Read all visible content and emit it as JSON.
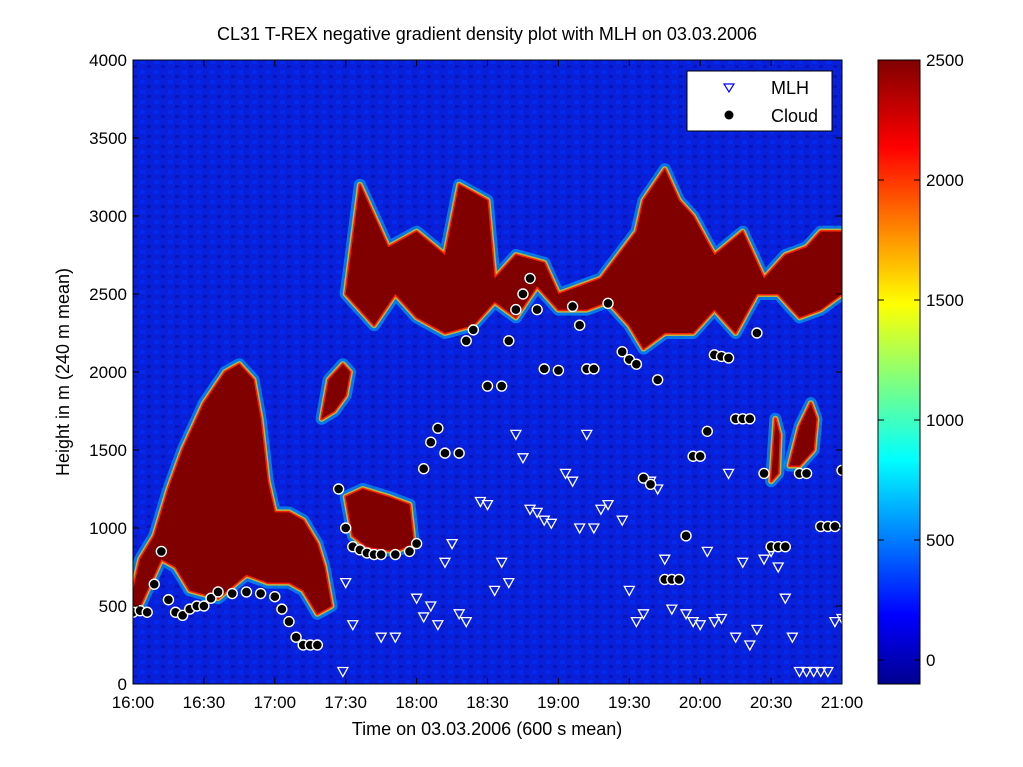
{
  "chart_data": {
    "type": "heatmap",
    "title": "CL31 T-REX negative gradient density plot with MLH on 03.03.2006",
    "xlabel": "Time on 03.03.2006 (600 s mean)",
    "ylabel": "Height in m (240 m mean)",
    "x_ticks": [
      "16:00",
      "16:30",
      "17:00",
      "17:30",
      "18:00",
      "18:30",
      "19:00",
      "19:30",
      "20:00",
      "20:30",
      "21:00"
    ],
    "x_tick_hours": [
      16.0,
      16.5,
      17.0,
      17.5,
      18.0,
      18.5,
      19.0,
      19.5,
      20.0,
      20.5,
      21.0
    ],
    "xlim_hours": [
      16.0,
      21.0
    ],
    "ylim": [
      0,
      4000
    ],
    "y_ticks": [
      0,
      500,
      1000,
      1500,
      2000,
      2500,
      3000,
      3500,
      4000
    ],
    "colorbar": {
      "clim": [
        -100,
        2500
      ],
      "ticks": [
        0,
        500,
        1000,
        1500,
        2000,
        2500
      ],
      "colormap": "jet"
    },
    "legend": {
      "placement": "top-right",
      "entries": [
        {
          "label": "MLH",
          "marker": "triangle-down",
          "color": "#0000ff"
        },
        {
          "label": "Cloud",
          "marker": "circle",
          "color": "#000000"
        }
      ]
    },
    "high_density_regions": [
      {
        "name": "left-plume",
        "points": [
          [
            16.0,
            600
          ],
          [
            16.05,
            800
          ],
          [
            16.15,
            950
          ],
          [
            16.25,
            1250
          ],
          [
            16.35,
            1500
          ],
          [
            16.5,
            1800
          ],
          [
            16.65,
            2000
          ],
          [
            16.75,
            2050
          ],
          [
            16.85,
            1950
          ],
          [
            16.9,
            1700
          ],
          [
            16.95,
            1300
          ],
          [
            17.0,
            1100
          ],
          [
            17.1,
            1100
          ],
          [
            17.2,
            1050
          ],
          [
            17.3,
            900
          ],
          [
            17.35,
            750
          ],
          [
            17.4,
            500
          ],
          [
            17.3,
            450
          ],
          [
            17.2,
            600
          ],
          [
            17.1,
            650
          ],
          [
            16.95,
            650
          ],
          [
            16.8,
            700
          ],
          [
            16.6,
            550
          ],
          [
            16.4,
            600
          ],
          [
            16.3,
            750
          ],
          [
            16.2,
            800
          ],
          [
            16.15,
            700
          ],
          [
            16.1,
            600
          ],
          [
            16.05,
            500
          ],
          [
            16.0,
            500
          ]
        ]
      },
      {
        "name": "block-1730",
        "points": [
          [
            17.5,
            1200
          ],
          [
            17.62,
            1250
          ],
          [
            17.8,
            1200
          ],
          [
            17.95,
            1150
          ],
          [
            17.98,
            900
          ],
          [
            17.85,
            850
          ],
          [
            17.65,
            880
          ],
          [
            17.55,
            950
          ]
        ]
      },
      {
        "name": "blob-1735",
        "points": [
          [
            17.33,
            1700
          ],
          [
            17.38,
            1950
          ],
          [
            17.48,
            2050
          ],
          [
            17.53,
            2000
          ],
          [
            17.5,
            1850
          ],
          [
            17.42,
            1750
          ]
        ]
      },
      {
        "name": "upper-band",
        "points": [
          [
            17.6,
            3200
          ],
          [
            17.8,
            2800
          ],
          [
            18.0,
            2900
          ],
          [
            18.2,
            2750
          ],
          [
            18.3,
            3200
          ],
          [
            18.5,
            3100
          ],
          [
            18.55,
            2600
          ],
          [
            18.7,
            2750
          ],
          [
            18.9,
            2700
          ],
          [
            19.0,
            2500
          ],
          [
            19.3,
            2600
          ],
          [
            19.55,
            2900
          ],
          [
            19.6,
            3100
          ],
          [
            19.75,
            3300
          ],
          [
            19.85,
            3100
          ],
          [
            19.95,
            3000
          ],
          [
            20.1,
            2750
          ],
          [
            20.3,
            2900
          ],
          [
            20.45,
            2600
          ],
          [
            20.6,
            2750
          ],
          [
            20.75,
            2800
          ],
          [
            20.85,
            2900
          ],
          [
            21.0,
            2900
          ],
          [
            21.0,
            2500
          ],
          [
            20.85,
            2400
          ],
          [
            20.7,
            2350
          ],
          [
            20.55,
            2500
          ],
          [
            20.4,
            2500
          ],
          [
            20.25,
            2250
          ],
          [
            20.1,
            2400
          ],
          [
            19.95,
            2250
          ],
          [
            19.75,
            2250
          ],
          [
            19.6,
            2150
          ],
          [
            19.5,
            2300
          ],
          [
            19.35,
            2450
          ],
          [
            19.2,
            2400
          ],
          [
            19.0,
            2400
          ],
          [
            18.85,
            2550
          ],
          [
            18.7,
            2350
          ],
          [
            18.55,
            2450
          ],
          [
            18.4,
            2300
          ],
          [
            18.2,
            2250
          ],
          [
            18.0,
            2350
          ],
          [
            17.85,
            2500
          ],
          [
            17.7,
            2300
          ],
          [
            17.6,
            2400
          ],
          [
            17.5,
            2500
          ]
        ]
      },
      {
        "name": "blob-2040",
        "points": [
          [
            20.63,
            1400
          ],
          [
            20.7,
            1650
          ],
          [
            20.78,
            1800
          ],
          [
            20.82,
            1700
          ],
          [
            20.8,
            1500
          ],
          [
            20.7,
            1400
          ]
        ]
      },
      {
        "name": "spike-2035",
        "points": [
          [
            20.5,
            1300
          ],
          [
            20.53,
            1700
          ],
          [
            20.56,
            1600
          ],
          [
            20.55,
            1350
          ]
        ]
      }
    ],
    "mlh_points": [
      [
        17.48,
        80
      ],
      [
        17.5,
        650
      ],
      [
        17.55,
        380
      ],
      [
        17.75,
        300
      ],
      [
        17.85,
        300
      ],
      [
        18.0,
        550
      ],
      [
        18.05,
        430
      ],
      [
        18.1,
        500
      ],
      [
        18.15,
        380
      ],
      [
        18.2,
        780
      ],
      [
        18.25,
        900
      ],
      [
        18.3,
        450
      ],
      [
        18.35,
        400
      ],
      [
        18.45,
        1170
      ],
      [
        18.5,
        1150
      ],
      [
        18.55,
        600
      ],
      [
        18.6,
        780
      ],
      [
        18.65,
        650
      ],
      [
        18.7,
        1600
      ],
      [
        18.75,
        1450
      ],
      [
        18.8,
        1120
      ],
      [
        18.85,
        1100
      ],
      [
        18.9,
        1050
      ],
      [
        18.95,
        1030
      ],
      [
        19.05,
        1350
      ],
      [
        19.1,
        1300
      ],
      [
        19.15,
        1000
      ],
      [
        19.2,
        1600
      ],
      [
        19.25,
        1000
      ],
      [
        19.3,
        1120
      ],
      [
        19.35,
        1150
      ],
      [
        19.45,
        1050
      ],
      [
        19.5,
        600
      ],
      [
        19.55,
        400
      ],
      [
        19.6,
        450
      ],
      [
        19.65,
        1300
      ],
      [
        19.7,
        1250
      ],
      [
        19.75,
        800
      ],
      [
        19.8,
        480
      ],
      [
        19.9,
        450
      ],
      [
        19.95,
        400
      ],
      [
        20.0,
        380
      ],
      [
        20.05,
        850
      ],
      [
        20.1,
        400
      ],
      [
        20.15,
        420
      ],
      [
        20.2,
        1350
      ],
      [
        20.25,
        300
      ],
      [
        20.3,
        780
      ],
      [
        20.35,
        250
      ],
      [
        20.4,
        350
      ],
      [
        20.45,
        800
      ],
      [
        20.5,
        850
      ],
      [
        20.55,
        750
      ],
      [
        20.6,
        550
      ],
      [
        20.65,
        300
      ],
      [
        20.7,
        80
      ],
      [
        20.75,
        80
      ],
      [
        20.8,
        80
      ],
      [
        20.85,
        80
      ],
      [
        20.9,
        80
      ],
      [
        20.95,
        400
      ],
      [
        21.0,
        420
      ]
    ],
    "cloud_points": [
      [
        16.0,
        460
      ],
      [
        16.05,
        470
      ],
      [
        16.1,
        460
      ],
      [
        16.15,
        640
      ],
      [
        16.2,
        850
      ],
      [
        16.25,
        540
      ],
      [
        16.3,
        460
      ],
      [
        16.35,
        440
      ],
      [
        16.4,
        480
      ],
      [
        16.45,
        500
      ],
      [
        16.5,
        500
      ],
      [
        16.55,
        550
      ],
      [
        16.6,
        590
      ],
      [
        16.7,
        580
      ],
      [
        16.8,
        590
      ],
      [
        16.9,
        580
      ],
      [
        17.0,
        560
      ],
      [
        17.05,
        480
      ],
      [
        17.1,
        400
      ],
      [
        17.15,
        300
      ],
      [
        17.2,
        250
      ],
      [
        17.25,
        250
      ],
      [
        17.3,
        250
      ],
      [
        17.45,
        1250
      ],
      [
        17.5,
        1000
      ],
      [
        17.55,
        880
      ],
      [
        17.6,
        860
      ],
      [
        17.65,
        840
      ],
      [
        17.7,
        830
      ],
      [
        17.75,
        830
      ],
      [
        17.85,
        830
      ],
      [
        17.95,
        850
      ],
      [
        18.0,
        900
      ],
      [
        18.05,
        1380
      ],
      [
        18.1,
        1550
      ],
      [
        18.15,
        1640
      ],
      [
        18.2,
        1480
      ],
      [
        18.3,
        1480
      ],
      [
        18.35,
        2200
      ],
      [
        18.4,
        2270
      ],
      [
        18.5,
        1910
      ],
      [
        18.6,
        1910
      ],
      [
        18.65,
        2200
      ],
      [
        18.7,
        2400
      ],
      [
        18.75,
        2500
      ],
      [
        18.8,
        2600
      ],
      [
        18.85,
        2400
      ],
      [
        18.9,
        2020
      ],
      [
        19.0,
        2010
      ],
      [
        19.1,
        2420
      ],
      [
        19.15,
        2300
      ],
      [
        19.2,
        2020
      ],
      [
        19.25,
        2020
      ],
      [
        19.35,
        2440
      ],
      [
        19.45,
        2130
      ],
      [
        19.5,
        2080
      ],
      [
        19.55,
        2050
      ],
      [
        19.6,
        1320
      ],
      [
        19.65,
        1280
      ],
      [
        19.7,
        1950
      ],
      [
        19.75,
        670
      ],
      [
        19.8,
        670
      ],
      [
        19.85,
        670
      ],
      [
        19.9,
        950
      ],
      [
        19.95,
        1460
      ],
      [
        20.0,
        1460
      ],
      [
        20.05,
        1620
      ],
      [
        20.1,
        2110
      ],
      [
        20.15,
        2100
      ],
      [
        20.2,
        2090
      ],
      [
        20.25,
        1700
      ],
      [
        20.3,
        1700
      ],
      [
        20.35,
        1700
      ],
      [
        20.4,
        2250
      ],
      [
        20.45,
        1350
      ],
      [
        20.5,
        880
      ],
      [
        20.55,
        880
      ],
      [
        20.6,
        880
      ],
      [
        20.7,
        1350
      ],
      [
        20.75,
        1350
      ],
      [
        20.85,
        1010
      ],
      [
        20.9,
        1010
      ],
      [
        20.95,
        1010
      ],
      [
        21.0,
        1370
      ]
    ]
  }
}
